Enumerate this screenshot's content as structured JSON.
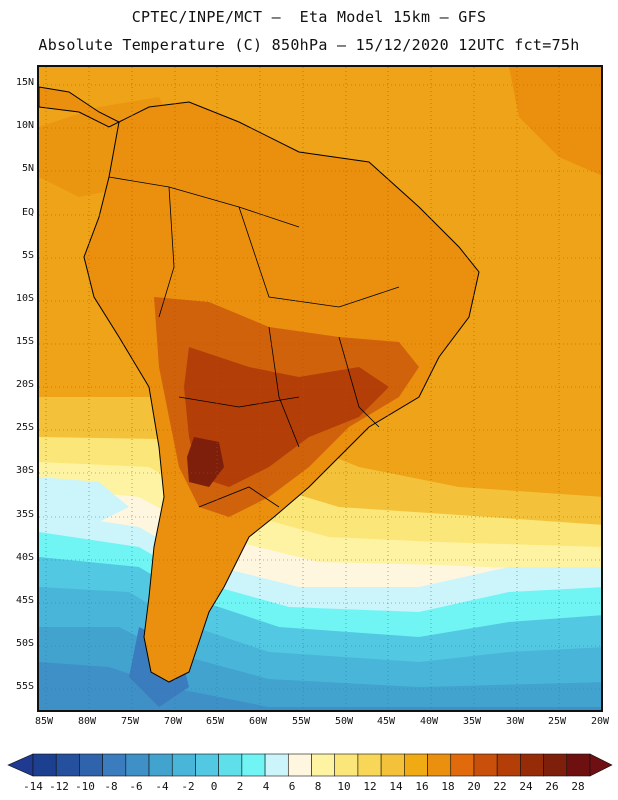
{
  "header": {
    "title_line1": "CPTEC/INPE/MCT –  Eta Model 15km – GFS",
    "title_line2": "Absolute Temperature (C) 850hPa – 15/12/2020 12UTC fct=75h"
  },
  "axes": {
    "lat_labels": [
      "15N",
      "10N",
      "5N",
      "EQ",
      "5S",
      "10S",
      "15S",
      "20S",
      "25S",
      "30S",
      "35S",
      "40S",
      "45S",
      "50S",
      "55S"
    ],
    "lon_labels": [
      "85W",
      "80W",
      "75W",
      "70W",
      "65W",
      "60W",
      "55W",
      "50W",
      "45W",
      "40W",
      "35W",
      "30W",
      "25W",
      "20W"
    ]
  },
  "legend": {
    "labels": [
      "-14",
      "-12",
      "-10",
      "-8",
      "-6",
      "-4",
      "-2",
      "0",
      "2",
      "4",
      "6",
      "8",
      "10",
      "12",
      "14",
      "16",
      "18",
      "20",
      "22",
      "24",
      "26",
      "28"
    ],
    "colors": [
      "#1d3f8f",
      "#25509e",
      "#2f64ad",
      "#3a7cbd",
      "#3f90c6",
      "#43a3cf",
      "#49b6d9",
      "#52c8e2",
      "#5edfea",
      "#70f5f4",
      "#ccf4fb",
      "#fef6de",
      "#fdf3a2",
      "#fbe679",
      "#f8d657",
      "#f3c23a",
      "#efaa14",
      "#ea900e",
      "#e06a0c",
      "#c9500a",
      "#b43e07",
      "#962b08",
      "#7d1f0b",
      "#6e1010"
    ],
    "max_color": "#6e0f14",
    "min_color": "#1f3a90"
  },
  "map": {
    "ocean_base_color": "#efa318",
    "land_hot_color": "#d0620c",
    "coast_color": "#000000"
  }
}
